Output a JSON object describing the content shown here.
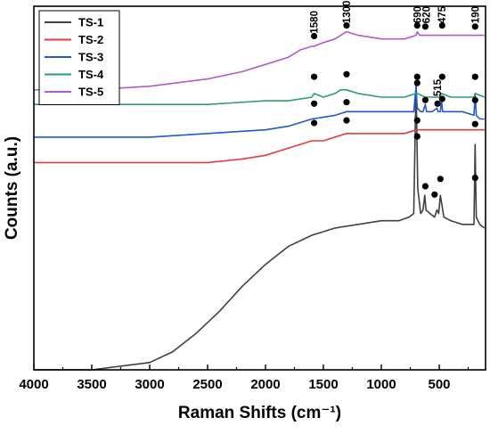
{
  "chart_data": {
    "type": "line",
    "xlabel": "Raman Shifts (cm⁻¹)",
    "ylabel": "Counts (a.u.)",
    "xlim": [
      4000,
      100
    ],
    "x_reversed": true,
    "x_ticks": [
      4000,
      3500,
      3000,
      2500,
      2000,
      1500,
      1000,
      500
    ],
    "y_ticks_shown": false,
    "grid": false,
    "legend_position": "top-left",
    "series": [
      {
        "name": "TS-1",
        "color": "#404040",
        "points": [
          [
            4000,
            0.0
          ],
          [
            3500,
            0.0
          ],
          [
            3000,
            0.02
          ],
          [
            2800,
            0.05
          ],
          [
            2600,
            0.1
          ],
          [
            2400,
            0.16
          ],
          [
            2200,
            0.23
          ],
          [
            2000,
            0.29
          ],
          [
            1800,
            0.34
          ],
          [
            1600,
            0.37
          ],
          [
            1400,
            0.39
          ],
          [
            1200,
            0.4
          ],
          [
            1000,
            0.41
          ],
          [
            850,
            0.41
          ],
          [
            760,
            0.42
          ],
          [
            720,
            0.43
          ],
          [
            700,
            0.79
          ],
          [
            685,
            0.5
          ],
          [
            660,
            0.43
          ],
          [
            640,
            0.44
          ],
          [
            625,
            0.48
          ],
          [
            615,
            0.44
          ],
          [
            580,
            0.43
          ],
          [
            540,
            0.42
          ],
          [
            520,
            0.44
          ],
          [
            505,
            0.43
          ],
          [
            490,
            0.48
          ],
          [
            480,
            0.46
          ],
          [
            460,
            0.42
          ],
          [
            400,
            0.41
          ],
          [
            300,
            0.4
          ],
          [
            230,
            0.4
          ],
          [
            200,
            0.4
          ],
          [
            190,
            0.62
          ],
          [
            180,
            0.42
          ],
          [
            150,
            0.4
          ],
          [
            110,
            0.39
          ]
        ]
      },
      {
        "name": "TS-2",
        "color": "#e53b3b",
        "points": [
          [
            4000,
            0.57
          ],
          [
            3500,
            0.57
          ],
          [
            3000,
            0.57
          ],
          [
            2500,
            0.57
          ],
          [
            2200,
            0.58
          ],
          [
            2000,
            0.59
          ],
          [
            1800,
            0.61
          ],
          [
            1600,
            0.63
          ],
          [
            1500,
            0.63
          ],
          [
            1400,
            0.64
          ],
          [
            1300,
            0.65
          ],
          [
            1200,
            0.65
          ],
          [
            1000,
            0.65
          ],
          [
            800,
            0.65
          ],
          [
            700,
            0.66
          ],
          [
            600,
            0.66
          ],
          [
            500,
            0.66
          ],
          [
            400,
            0.66
          ],
          [
            300,
            0.66
          ],
          [
            200,
            0.66
          ],
          [
            110,
            0.66
          ]
        ]
      },
      {
        "name": "TS-3",
        "color": "#1f5ad0",
        "points": [
          [
            4000,
            0.64
          ],
          [
            3500,
            0.64
          ],
          [
            3000,
            0.64
          ],
          [
            2500,
            0.65
          ],
          [
            2000,
            0.66
          ],
          [
            1800,
            0.67
          ],
          [
            1600,
            0.69
          ],
          [
            1400,
            0.7
          ],
          [
            1300,
            0.71
          ],
          [
            1200,
            0.71
          ],
          [
            1000,
            0.71
          ],
          [
            800,
            0.71
          ],
          [
            720,
            0.71
          ],
          [
            700,
            0.78
          ],
          [
            690,
            0.72
          ],
          [
            660,
            0.71
          ],
          [
            640,
            0.71
          ],
          [
            620,
            0.73
          ],
          [
            610,
            0.71
          ],
          [
            560,
            0.71
          ],
          [
            520,
            0.72
          ],
          [
            510,
            0.71
          ],
          [
            490,
            0.71
          ],
          [
            480,
            0.74
          ],
          [
            470,
            0.71
          ],
          [
            400,
            0.71
          ],
          [
            300,
            0.71
          ],
          [
            200,
            0.7
          ],
          [
            190,
            0.76
          ],
          [
            180,
            0.7
          ],
          [
            150,
            0.69
          ],
          [
            110,
            0.69
          ]
        ]
      },
      {
        "name": "TS-4",
        "color": "#2e9e68",
        "points": [
          [
            4000,
            0.73
          ],
          [
            3500,
            0.73
          ],
          [
            3000,
            0.73
          ],
          [
            2500,
            0.73
          ],
          [
            2000,
            0.74
          ],
          [
            1800,
            0.74
          ],
          [
            1600,
            0.75
          ],
          [
            1580,
            0.76
          ],
          [
            1500,
            0.75
          ],
          [
            1400,
            0.76
          ],
          [
            1350,
            0.77
          ],
          [
            1300,
            0.77
          ],
          [
            1200,
            0.76
          ],
          [
            1000,
            0.75
          ],
          [
            800,
            0.75
          ],
          [
            700,
            0.76
          ],
          [
            690,
            0.76
          ],
          [
            620,
            0.75
          ],
          [
            500,
            0.75
          ],
          [
            480,
            0.76
          ],
          [
            400,
            0.75
          ],
          [
            300,
            0.75
          ],
          [
            200,
            0.75
          ],
          [
            190,
            0.76
          ],
          [
            110,
            0.75
          ]
        ]
      },
      {
        "name": "TS-5",
        "color": "#b05ad0",
        "points": [
          [
            4000,
            0.77
          ],
          [
            3500,
            0.77
          ],
          [
            3000,
            0.78
          ],
          [
            2500,
            0.8
          ],
          [
            2200,
            0.82
          ],
          [
            2000,
            0.84
          ],
          [
            1800,
            0.86
          ],
          [
            1700,
            0.88
          ],
          [
            1600,
            0.89
          ],
          [
            1580,
            0.89
          ],
          [
            1500,
            0.9
          ],
          [
            1400,
            0.91
          ],
          [
            1350,
            0.92
          ],
          [
            1300,
            0.93
          ],
          [
            1200,
            0.92
          ],
          [
            1000,
            0.91
          ],
          [
            800,
            0.91
          ],
          [
            700,
            0.92
          ],
          [
            690,
            0.93
          ],
          [
            670,
            0.92
          ],
          [
            500,
            0.92
          ],
          [
            400,
            0.92
          ],
          [
            300,
            0.92
          ],
          [
            200,
            0.92
          ],
          [
            110,
            0.92
          ]
        ]
      }
    ],
    "peak_markers": [
      {
        "x": 1580,
        "y": 0.918
      },
      {
        "x": 1300,
        "y": 0.947
      },
      {
        "x": 690,
        "y": 0.947
      },
      {
        "x": 620,
        "y": 0.944
      },
      {
        "x": 475,
        "y": 0.947
      },
      {
        "x": 190,
        "y": 0.944
      },
      {
        "x": 1580,
        "y": 0.806
      },
      {
        "x": 1300,
        "y": 0.813
      },
      {
        "x": 690,
        "y": 0.806
      },
      {
        "x": 475,
        "y": 0.806
      },
      {
        "x": 190,
        "y": 0.806
      },
      {
        "x": 1580,
        "y": 0.732
      },
      {
        "x": 1300,
        "y": 0.736
      },
      {
        "x": 690,
        "y": 0.789
      },
      {
        "x": 620,
        "y": 0.742
      },
      {
        "x": 515,
        "y": 0.732
      },
      {
        "x": 475,
        "y": 0.745
      },
      {
        "x": 190,
        "y": 0.742
      },
      {
        "x": 1580,
        "y": 0.679
      },
      {
        "x": 1300,
        "y": 0.686
      },
      {
        "x": 690,
        "y": 0.686
      },
      {
        "x": 190,
        "y": 0.676
      },
      {
        "x": 690,
        "y": 0.642
      },
      {
        "x": 620,
        "y": 0.505
      },
      {
        "x": 540,
        "y": 0.482
      },
      {
        "x": 490,
        "y": 0.525
      },
      {
        "x": 190,
        "y": 0.528
      }
    ],
    "peak_labels": [
      {
        "text": "1580",
        "x": 1580,
        "y": 0.925
      },
      {
        "text": "1300",
        "x": 1300,
        "y": 0.953
      },
      {
        "text": "690",
        "x": 690,
        "y": 0.953
      },
      {
        "text": "620",
        "x": 610,
        "y": 0.953
      },
      {
        "text": "475",
        "x": 475,
        "y": 0.953
      },
      {
        "text": "190",
        "x": 190,
        "y": 0.953
      },
      {
        "text": "515",
        "x": 515,
        "y": 0.752
      }
    ]
  }
}
